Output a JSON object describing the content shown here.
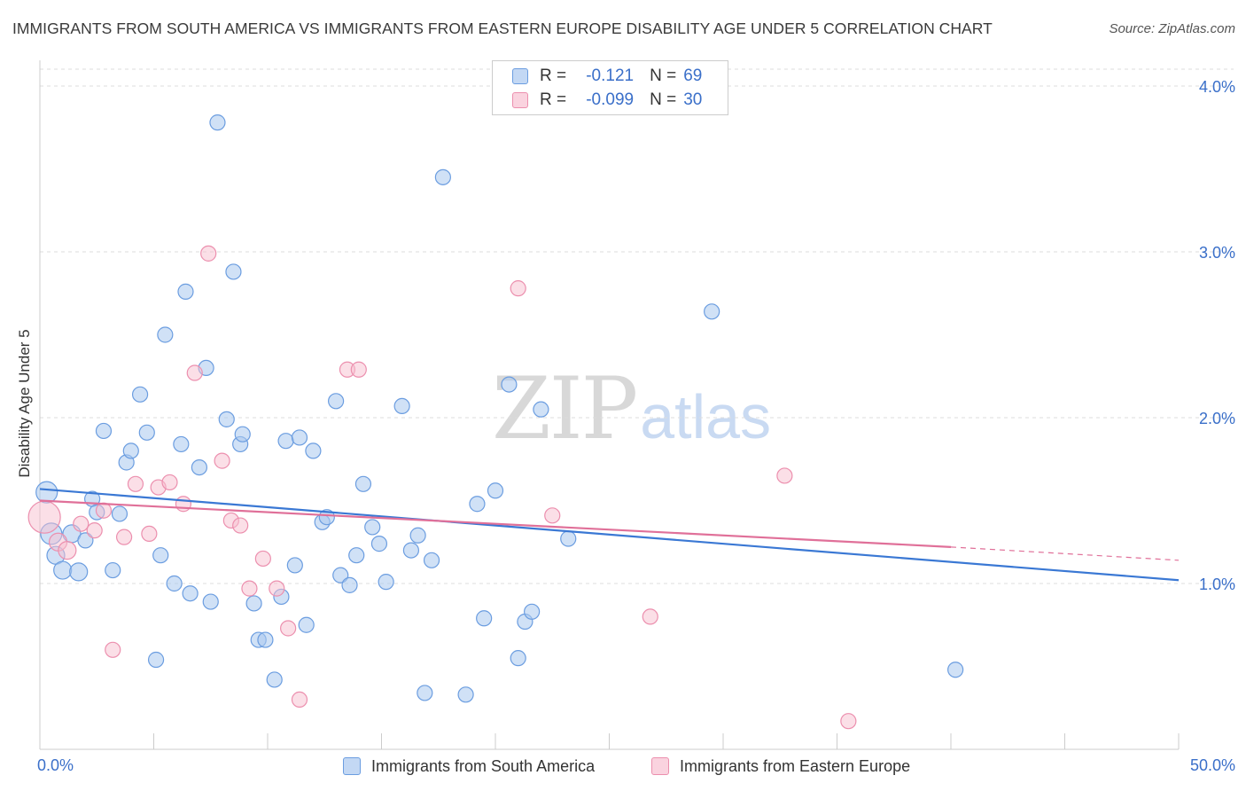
{
  "title": "IMMIGRANTS FROM SOUTH AMERICA VS IMMIGRANTS FROM EASTERN EUROPE DISABILITY AGE UNDER 5 CORRELATION CHART",
  "source": "Source: ZipAtlas.com",
  "watermark": {
    "zip": "ZIP",
    "atlas": "atlas"
  },
  "legend": {
    "r_label": "R =",
    "n_label": "N =",
    "series1": {
      "r": "-0.121",
      "n": "69"
    },
    "series2": {
      "r": "-0.099",
      "n": "30"
    }
  },
  "colors": {
    "series1_fill": "#a9c8ef",
    "series1_stroke": "#6b9de0",
    "series1_line": "#3a78d4",
    "series2_fill": "#f7bfd0",
    "series2_stroke": "#ec8fae",
    "series2_line": "#e07099",
    "axis_text": "#3a6fc9",
    "grid": "#dddddd"
  },
  "chart_data": {
    "type": "scatter",
    "title": "IMMIGRANTS FROM SOUTH AMERICA VS IMMIGRANTS FROM EASTERN EUROPE DISABILITY AGE UNDER 5 CORRELATION CHART",
    "xlabel": "",
    "ylabel": "Disability Age Under 5",
    "xlim": [
      0,
      50
    ],
    "ylim": [
      0,
      4.1
    ],
    "x_tick_labels": [
      "0.0%",
      "50.0%"
    ],
    "y_ticks": [
      1.0,
      2.0,
      3.0,
      4.0
    ],
    "y_tick_labels": [
      "1.0%",
      "2.0%",
      "3.0%",
      "4.0%"
    ],
    "grid": "horizontal dashed",
    "legend_placement": "top-center and bottom",
    "series": [
      {
        "name": "Immigrants from South America",
        "r": -0.121,
        "n": 69,
        "trend": {
          "x": [
            0,
            50
          ],
          "y": [
            1.57,
            1.02
          ]
        },
        "points": [
          [
            0.3,
            1.55
          ],
          [
            0.5,
            1.3
          ],
          [
            0.7,
            1.17
          ],
          [
            1.0,
            1.08
          ],
          [
            1.4,
            1.3
          ],
          [
            1.7,
            1.07
          ],
          [
            2.0,
            1.26
          ],
          [
            2.3,
            1.51
          ],
          [
            2.8,
            1.92
          ],
          [
            2.5,
            1.43
          ],
          [
            3.2,
            1.08
          ],
          [
            3.5,
            1.42
          ],
          [
            3.8,
            1.73
          ],
          [
            4.0,
            1.8
          ],
          [
            4.4,
            2.14
          ],
          [
            4.7,
            1.91
          ],
          [
            5.1,
            0.54
          ],
          [
            5.3,
            1.17
          ],
          [
            5.5,
            2.5
          ],
          [
            5.9,
            1.0
          ],
          [
            6.2,
            1.84
          ],
          [
            6.4,
            2.76
          ],
          [
            6.6,
            0.94
          ],
          [
            7.0,
            1.7
          ],
          [
            7.3,
            2.3
          ],
          [
            7.5,
            0.89
          ],
          [
            7.8,
            3.78
          ],
          [
            8.2,
            1.99
          ],
          [
            8.5,
            2.88
          ],
          [
            8.8,
            1.84
          ],
          [
            8.9,
            1.9
          ],
          [
            9.4,
            0.88
          ],
          [
            9.6,
            0.66
          ],
          [
            9.9,
            0.66
          ],
          [
            10.3,
            0.42
          ],
          [
            10.6,
            0.92
          ],
          [
            10.8,
            1.86
          ],
          [
            11.2,
            1.11
          ],
          [
            11.4,
            1.88
          ],
          [
            11.7,
            0.75
          ],
          [
            12.0,
            1.8
          ],
          [
            12.4,
            1.37
          ],
          [
            12.6,
            1.4
          ],
          [
            13.0,
            2.1
          ],
          [
            13.2,
            1.05
          ],
          [
            13.6,
            0.99
          ],
          [
            13.9,
            1.17
          ],
          [
            14.2,
            1.6
          ],
          [
            14.6,
            1.34
          ],
          [
            14.9,
            1.24
          ],
          [
            15.2,
            1.01
          ],
          [
            15.9,
            2.07
          ],
          [
            16.3,
            1.2
          ],
          [
            16.6,
            1.29
          ],
          [
            16.9,
            0.34
          ],
          [
            17.2,
            1.14
          ],
          [
            17.7,
            3.45
          ],
          [
            18.7,
            0.33
          ],
          [
            19.2,
            1.48
          ],
          [
            19.5,
            0.79
          ],
          [
            20.0,
            1.56
          ],
          [
            20.6,
            2.2
          ],
          [
            21.0,
            0.55
          ],
          [
            21.3,
            0.77
          ],
          [
            21.6,
            0.83
          ],
          [
            22.0,
            2.05
          ],
          [
            23.2,
            1.27
          ],
          [
            29.5,
            2.64
          ],
          [
            40.2,
            0.48
          ]
        ]
      },
      {
        "name": "Immigrants from Eastern Europe",
        "r": -0.099,
        "n": 30,
        "trend": {
          "x": [
            0,
            40
          ],
          "y": [
            1.5,
            1.22
          ],
          "dashed_to": {
            "x": 50,
            "y": 1.14
          }
        },
        "points": [
          [
            0.2,
            1.4
          ],
          [
            0.8,
            1.25
          ],
          [
            1.2,
            1.2
          ],
          [
            1.8,
            1.36
          ],
          [
            2.4,
            1.32
          ],
          [
            2.8,
            1.44
          ],
          [
            3.2,
            0.6
          ],
          [
            3.7,
            1.28
          ],
          [
            4.2,
            1.6
          ],
          [
            4.8,
            1.3
          ],
          [
            5.2,
            1.58
          ],
          [
            5.7,
            1.61
          ],
          [
            6.3,
            1.48
          ],
          [
            6.8,
            2.27
          ],
          [
            7.4,
            2.99
          ],
          [
            8.0,
            1.74
          ],
          [
            8.4,
            1.38
          ],
          [
            8.8,
            1.35
          ],
          [
            9.2,
            0.97
          ],
          [
            9.8,
            1.15
          ],
          [
            10.4,
            0.97
          ],
          [
            10.9,
            0.73
          ],
          [
            11.4,
            0.3
          ],
          [
            13.5,
            2.29
          ],
          [
            14.0,
            2.29
          ],
          [
            21.0,
            2.78
          ],
          [
            22.5,
            1.41
          ],
          [
            26.8,
            0.8
          ],
          [
            32.7,
            1.65
          ],
          [
            35.5,
            0.17
          ]
        ]
      }
    ]
  },
  "bottom_legend": {
    "series1": "Immigrants from South America",
    "series2": "Immigrants from Eastern Europe"
  }
}
